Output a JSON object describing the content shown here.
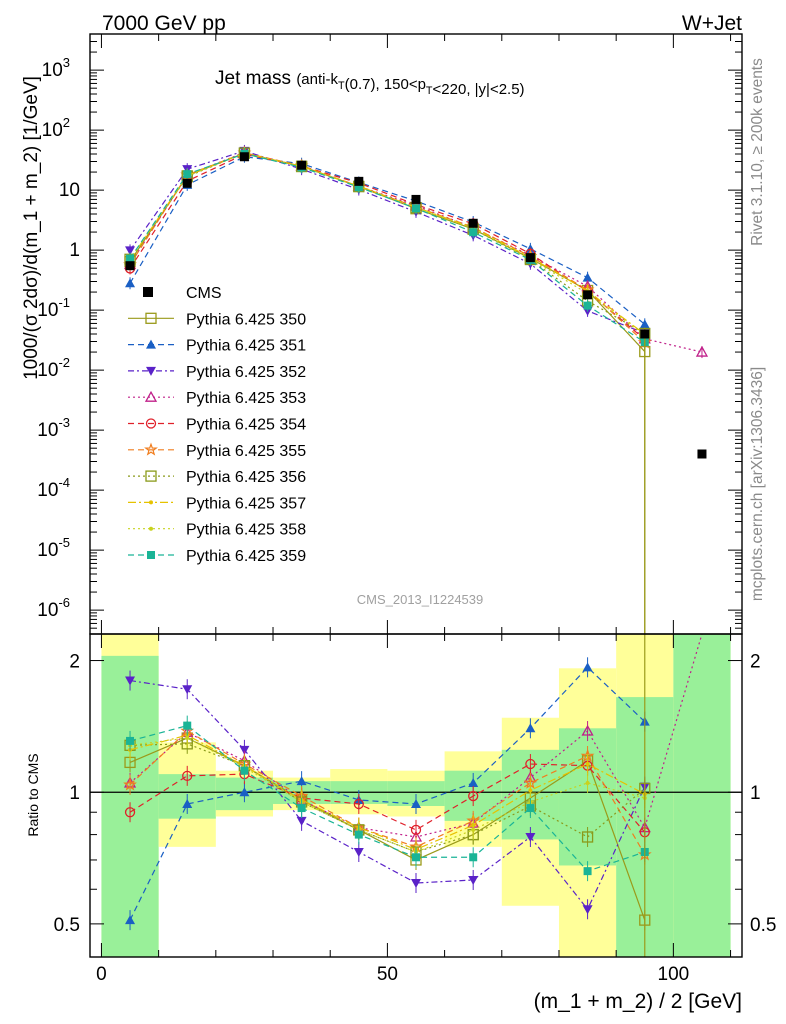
{
  "header": {
    "left": "7000 GeV pp",
    "right": "W+Jet"
  },
  "side_labels": {
    "rivet": "Rivet 3.1.10, ≥ 200k events",
    "mcplots": "mcplots.cern.ch [arXiv:1306.3436]"
  },
  "chart_data": {
    "type": "line",
    "title_main": "Jet mass",
    "title_sub": "(anti-k_T(0.7), 150<p_T<220, |y|<2.5)",
    "analysis_tag": "CMS_2013_I1224539",
    "xlabel": "(m_1 + m_2) / 2 [GeV]",
    "ylabel": "1000/(σ 2dσ)/d(m_1 + m_2) [1/GeV]",
    "ratio_ylabel": "Ratio to CMS",
    "xlim": [
      -2,
      112
    ],
    "ylim": [
      4e-07,
      4000
    ],
    "yscale": "log",
    "ratio_ylim": [
      0.42,
      2.3
    ],
    "x_ticks": [
      "0",
      "50",
      "100"
    ],
    "y_ticks": [
      "10^-6",
      "10^-5",
      "10^-4",
      "10^-3",
      "10^-2",
      "10^-1",
      "1",
      "10",
      "10^2",
      "10^3"
    ],
    "ratio_ticks": [
      "0.5",
      "1",
      "2"
    ],
    "x": [
      5,
      15,
      25,
      35,
      45,
      55,
      65,
      75,
      85,
      95,
      105
    ],
    "data": {
      "name": "CMS",
      "values": [
        0.55,
        13,
        36,
        26,
        14,
        7,
        2.8,
        0.75,
        0.18,
        0.04,
        0.0004
      ],
      "band_edges": [
        0,
        10,
        20,
        30,
        40,
        50,
        60,
        70,
        80,
        90,
        100,
        110
      ],
      "band_inner_up": [
        2.05,
        1.1,
        1.08,
        1.06,
        1.06,
        1.06,
        1.12,
        1.25,
        1.4,
        1.65,
        2.3
      ],
      "band_inner_lo": [
        0.42,
        0.87,
        0.91,
        0.94,
        0.94,
        0.93,
        0.86,
        0.78,
        0.68,
        0.42,
        0.42
      ],
      "band_outer_up": [
        2.3,
        1.3,
        1.12,
        1.08,
        1.13,
        1.12,
        1.24,
        1.48,
        1.92,
        2.3,
        2.3
      ],
      "band_outer_lo": [
        0.42,
        0.75,
        0.88,
        0.91,
        0.89,
        0.88,
        0.75,
        0.55,
        0.42,
        0.42,
        0.42
      ]
    },
    "series": [
      {
        "name": "Pythia 6.425 350",
        "color": "#9a9a1a",
        "dash": "",
        "marker": "square-open",
        "ratio": [
          1.17,
          1.33,
          1.15,
          0.96,
          0.82,
          0.7,
          0.8,
          0.97,
          1.18,
          0.51,
          null
        ]
      },
      {
        "name": "Pythia 6.425 351",
        "color": "#1a5fc4",
        "dash": "6,4",
        "marker": "triangle-up",
        "ratio": [
          0.51,
          0.94,
          1.0,
          1.06,
          0.96,
          0.94,
          1.05,
          1.4,
          1.93,
          1.45,
          null
        ]
      },
      {
        "name": "Pythia 6.425 352",
        "color": "#5a22c8",
        "dash": "6,3,2,3",
        "marker": "triangle-down",
        "ratio": [
          1.8,
          1.72,
          1.25,
          0.86,
          0.73,
          0.62,
          0.63,
          0.79,
          0.54,
          1.03,
          null
        ]
      },
      {
        "name": "Pythia 6.425 353",
        "color": "#c0208a",
        "dash": "2,3",
        "marker": "triangle-open",
        "ratio": [
          1.05,
          1.37,
          1.18,
          0.96,
          0.83,
          0.79,
          0.85,
          1.08,
          1.38,
          0.83,
          50
        ]
      },
      {
        "name": "Pythia 6.425 354",
        "color": "#e0202a",
        "dash": "6,4",
        "marker": "circle-open",
        "ratio": [
          0.9,
          1.09,
          1.1,
          0.97,
          0.94,
          0.82,
          0.98,
          1.16,
          1.15,
          0.81,
          null
        ]
      },
      {
        "name": "Pythia 6.425 355",
        "color": "#f07d1e",
        "dash": "6,4",
        "marker": "star",
        "ratio": [
          1.04,
          1.38,
          1.16,
          0.98,
          0.83,
          0.75,
          0.86,
          1.05,
          1.21,
          0.72,
          null
        ]
      },
      {
        "name": "Pythia 6.425 356",
        "color": "#8a9a1a",
        "dash": "2,3",
        "marker": "square-open",
        "ratio": [
          1.28,
          1.29,
          1.15,
          0.95,
          0.82,
          0.73,
          0.8,
          0.93,
          0.79,
          1.02,
          null
        ]
      },
      {
        "name": "Pythia 6.425 357",
        "color": "#e6c200",
        "dash": "8,3,2,3",
        "marker": "dot",
        "ratio": [
          1.25,
          1.35,
          1.15,
          0.96,
          0.83,
          0.74,
          0.84,
          1.01,
          1.16,
          0.99,
          null
        ]
      },
      {
        "name": "Pythia 6.425 358",
        "color": "#c8d21e",
        "dash": "2,3",
        "marker": "dot",
        "ratio": [
          1.28,
          1.33,
          1.14,
          0.95,
          0.82,
          0.73,
          0.82,
          0.95,
          1.05,
          0.97,
          null
        ]
      },
      {
        "name": "Pythia 6.425 359",
        "color": "#1ab496",
        "dash": "6,4",
        "marker": "square",
        "ratio": [
          1.31,
          1.42,
          1.12,
          0.92,
          0.8,
          0.71,
          0.71,
          0.92,
          0.66,
          0.73,
          null
        ]
      }
    ]
  }
}
